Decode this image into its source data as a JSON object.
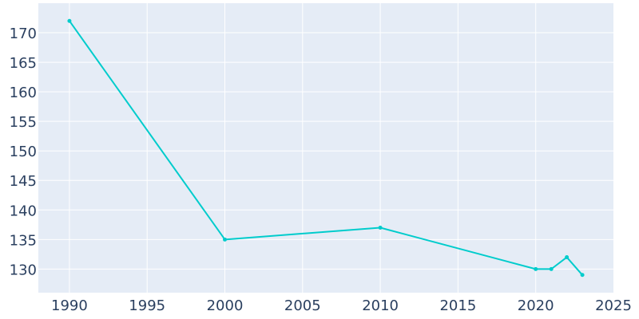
{
  "chart_data": {
    "type": "line",
    "title": "",
    "xlabel": "",
    "ylabel": "",
    "xlim": [
      1988,
      2025
    ],
    "ylim": [
      126,
      175
    ],
    "x_ticks": [
      1990,
      1995,
      2000,
      2005,
      2010,
      2015,
      2020,
      2025
    ],
    "y_ticks": [
      130,
      135,
      140,
      145,
      150,
      155,
      160,
      165,
      170
    ],
    "grid": true,
    "legend": "none",
    "series": [
      {
        "x": [
          1990,
          2000,
          2010,
          2020,
          2021,
          2022,
          2023
        ],
        "values": [
          172,
          135,
          137,
          130,
          130,
          132,
          129
        ]
      }
    ],
    "colors": {
      "plot_background": "#e5ecf6",
      "grid": "#ffffff",
      "line": "#00cccc",
      "tick_text": "#2a3f5f"
    }
  }
}
